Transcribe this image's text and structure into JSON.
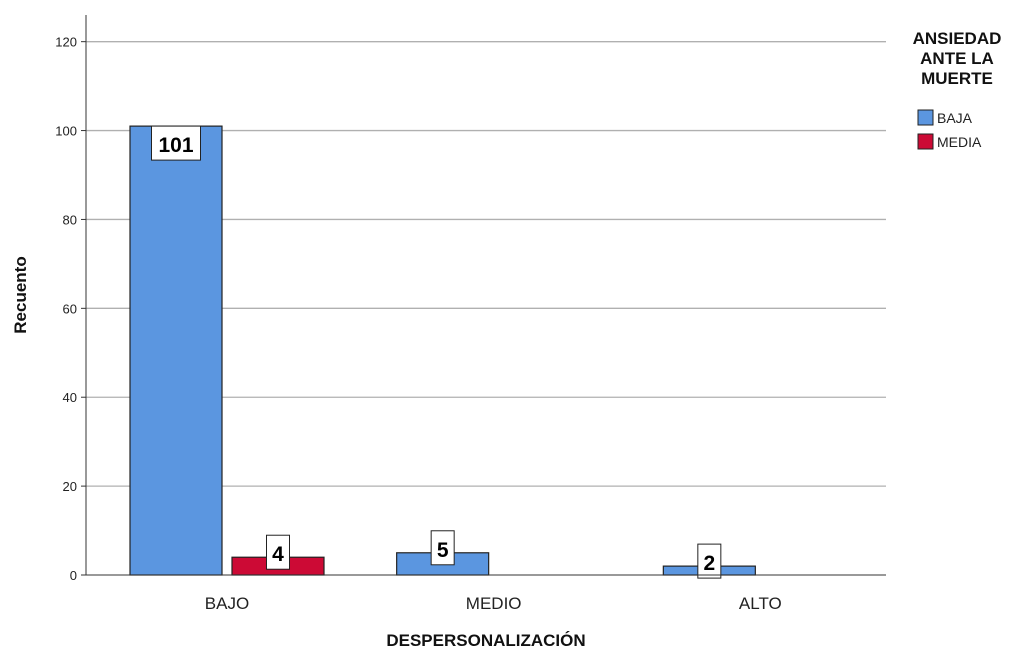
{
  "chart_data": {
    "type": "bar",
    "categories": [
      "BAJO",
      "MEDIO",
      "ALTO"
    ],
    "series": [
      {
        "name": "BAJA",
        "color": "#5b96e0",
        "values": [
          101,
          5,
          2
        ]
      },
      {
        "name": "MEDIA",
        "color": "#cc0a35",
        "values": [
          4,
          0,
          0
        ]
      }
    ],
    "data_labels": [
      [
        "101",
        "5",
        "2"
      ],
      [
        "4",
        "",
        ""
      ]
    ],
    "xlabel": "DESPERSONALIZACIÓN",
    "ylabel": "Recuento",
    "ylim": [
      0,
      126
    ],
    "yticks": [
      0,
      20,
      40,
      60,
      80,
      100,
      120
    ],
    "grid": true,
    "legend": {
      "title_lines": [
        "ANSIEDAD",
        "ANTE LA",
        "MUERTE"
      ],
      "position": "right"
    }
  }
}
